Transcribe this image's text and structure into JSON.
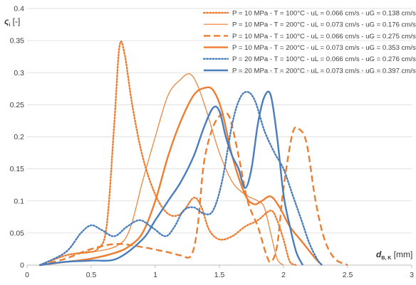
{
  "chart_data": {
    "type": "line",
    "xlabel": {
      "symbol": "d",
      "subscript": "B, K",
      "unit": " [mm]"
    },
    "ylabel": {
      "symbol": "ς",
      "subscript": "i",
      "unit": " [-]"
    },
    "xlim": [
      0,
      3
    ],
    "ylim": [
      0,
      0.4
    ],
    "x_ticks": [
      "0",
      "0.5",
      "1",
      "1.5",
      "2",
      "2.5",
      "3"
    ],
    "y_ticks": [
      "0",
      "0.05",
      "0.1",
      "0.15",
      "0.2",
      "0.25",
      "0.3",
      "0.35",
      "0.4"
    ],
    "grid": "horizontal",
    "legend_position": "top-right",
    "series": [
      {
        "name": "P = 10 MPa - T = 100°C - uL = 0.066 cm/s - uG = 0.138 cm/s",
        "color": "#ED7D31",
        "style": "dotted",
        "weight": "thick",
        "points": [
          [
            0.1,
            0
          ],
          [
            0.3,
            0.015
          ],
          [
            0.45,
            0.02
          ],
          [
            0.55,
            0.025
          ],
          [
            0.62,
            0.06
          ],
          [
            0.68,
            0.22
          ],
          [
            0.72,
            0.34
          ],
          [
            0.76,
            0.33
          ],
          [
            0.82,
            0.25
          ],
          [
            0.9,
            0.17
          ],
          [
            1.0,
            0.11
          ],
          [
            1.1,
            0.08
          ],
          [
            1.2,
            0.08
          ],
          [
            1.3,
            0.105
          ],
          [
            1.36,
            0.09
          ],
          [
            1.42,
            0.055
          ],
          [
            1.5,
            0.04
          ],
          [
            1.6,
            0.045
          ],
          [
            1.7,
            0.06
          ],
          [
            1.8,
            0.07
          ],
          [
            1.9,
            0.085
          ],
          [
            1.95,
            0.07
          ],
          [
            2.0,
            0.04
          ],
          [
            2.05,
            0.005
          ],
          [
            2.1,
            0
          ]
        ]
      },
      {
        "name": "P = 10 MPa - T = 200°C - uL = 0.073 cm/s - uG = 0.176 cm/s",
        "color": "#ED7D31",
        "style": "solid",
        "weight": "thin",
        "points": [
          [
            0.1,
            0
          ],
          [
            0.3,
            0.015
          ],
          [
            0.5,
            0.02
          ],
          [
            0.7,
            0.03
          ],
          [
            0.8,
            0.055
          ],
          [
            0.9,
            0.13
          ],
          [
            1.0,
            0.2
          ],
          [
            1.1,
            0.265
          ],
          [
            1.2,
            0.29
          ],
          [
            1.27,
            0.298
          ],
          [
            1.33,
            0.28
          ],
          [
            1.4,
            0.24
          ],
          [
            1.5,
            0.175
          ],
          [
            1.6,
            0.13
          ],
          [
            1.7,
            0.11
          ],
          [
            1.8,
            0.1
          ],
          [
            1.85,
            0.09
          ],
          [
            1.9,
            0.05
          ],
          [
            1.95,
            0.01
          ],
          [
            2.0,
            0
          ]
        ]
      },
      {
        "name": "P = 10 MPa - T = 100°C - uL = 0.066 cm/s - uG = 0.275 cm/s",
        "color": "#ED7D31",
        "style": "dashed",
        "weight": "thick",
        "points": [
          [
            0.1,
            0
          ],
          [
            0.3,
            0.01
          ],
          [
            0.5,
            0.025
          ],
          [
            0.7,
            0.033
          ],
          [
            0.9,
            0.028
          ],
          [
            1.1,
            0.02
          ],
          [
            1.2,
            0.015
          ],
          [
            1.28,
            0.015
          ],
          [
            1.33,
            0.06
          ],
          [
            1.38,
            0.16
          ],
          [
            1.45,
            0.215
          ],
          [
            1.52,
            0.235
          ],
          [
            1.58,
            0.23
          ],
          [
            1.65,
            0.17
          ],
          [
            1.72,
            0.1
          ],
          [
            1.8,
            0.06
          ],
          [
            1.86,
            0.02
          ],
          [
            1.9,
            0.005
          ],
          [
            1.95,
            0.03
          ],
          [
            2.0,
            0.12
          ],
          [
            2.07,
            0.205
          ],
          [
            2.12,
            0.212
          ],
          [
            2.18,
            0.19
          ],
          [
            2.25,
            0.1
          ],
          [
            2.32,
            0.04
          ],
          [
            2.4,
            0.01
          ],
          [
            2.5,
            0
          ]
        ]
      },
      {
        "name": "P = 10 MPa - T = 200°C - uL = 0.073 cm/s - uG = 0.353 cm/s",
        "color": "#ED7D31",
        "style": "solid",
        "weight": "thick",
        "points": [
          [
            0.1,
            0
          ],
          [
            0.3,
            0.005
          ],
          [
            0.5,
            0.01
          ],
          [
            0.7,
            0.02
          ],
          [
            0.8,
            0.03
          ],
          [
            0.9,
            0.05
          ],
          [
            1.0,
            0.1
          ],
          [
            1.1,
            0.17
          ],
          [
            1.2,
            0.225
          ],
          [
            1.3,
            0.265
          ],
          [
            1.38,
            0.276
          ],
          [
            1.45,
            0.273
          ],
          [
            1.52,
            0.24
          ],
          [
            1.6,
            0.17
          ],
          [
            1.7,
            0.11
          ],
          [
            1.77,
            0.095
          ],
          [
            1.83,
            0.1
          ],
          [
            1.9,
            0.107
          ],
          [
            1.97,
            0.09
          ],
          [
            2.05,
            0.06
          ],
          [
            2.15,
            0.035
          ],
          [
            2.25,
            0.01
          ],
          [
            2.3,
            0
          ]
        ]
      },
      {
        "name": "P = 20 MPa - T = 100°C - uL = 0.066 cm/s - uG = 0.276 cm/s",
        "color": "#4A7DBE",
        "style": "dotted",
        "weight": "thick",
        "points": [
          [
            0.1,
            0
          ],
          [
            0.3,
            0.02
          ],
          [
            0.42,
            0.05
          ],
          [
            0.5,
            0.062
          ],
          [
            0.58,
            0.055
          ],
          [
            0.68,
            0.045
          ],
          [
            0.78,
            0.06
          ],
          [
            0.88,
            0.07
          ],
          [
            0.98,
            0.058
          ],
          [
            1.08,
            0.045
          ],
          [
            1.15,
            0.06
          ],
          [
            1.22,
            0.085
          ],
          [
            1.3,
            0.09
          ],
          [
            1.38,
            0.08
          ],
          [
            1.45,
            0.085
          ],
          [
            1.52,
            0.13
          ],
          [
            1.6,
            0.22
          ],
          [
            1.66,
            0.26
          ],
          [
            1.72,
            0.27
          ],
          [
            1.78,
            0.255
          ],
          [
            1.85,
            0.21
          ],
          [
            1.93,
            0.175
          ],
          [
            2.0,
            0.15
          ],
          [
            2.07,
            0.11
          ],
          [
            2.14,
            0.07
          ],
          [
            2.2,
            0.035
          ],
          [
            2.26,
            0.01
          ],
          [
            2.3,
            0
          ]
        ]
      },
      {
        "name": "P = 20 MPa - T = 200°C - uL = 0.073 cm/s - uG = 0.397 cm/s",
        "color": "#4A7DBE",
        "style": "solid",
        "weight": "thick",
        "points": [
          [
            0.1,
            0
          ],
          [
            0.3,
            0.005
          ],
          [
            0.5,
            0.007
          ],
          [
            0.7,
            0.01
          ],
          [
            0.9,
            0.04
          ],
          [
            1.0,
            0.07
          ],
          [
            1.1,
            0.1
          ],
          [
            1.2,
            0.13
          ],
          [
            1.3,
            0.17
          ],
          [
            1.38,
            0.215
          ],
          [
            1.45,
            0.245
          ],
          [
            1.5,
            0.24
          ],
          [
            1.55,
            0.2
          ],
          [
            1.6,
            0.17
          ],
          [
            1.65,
            0.15
          ],
          [
            1.7,
            0.12
          ],
          [
            1.75,
            0.15
          ],
          [
            1.8,
            0.22
          ],
          [
            1.85,
            0.262
          ],
          [
            1.9,
            0.265
          ],
          [
            1.95,
            0.2
          ],
          [
            2.0,
            0.11
          ],
          [
            2.05,
            0.06
          ],
          [
            2.1,
            0.02
          ],
          [
            2.15,
            0
          ]
        ]
      }
    ]
  }
}
